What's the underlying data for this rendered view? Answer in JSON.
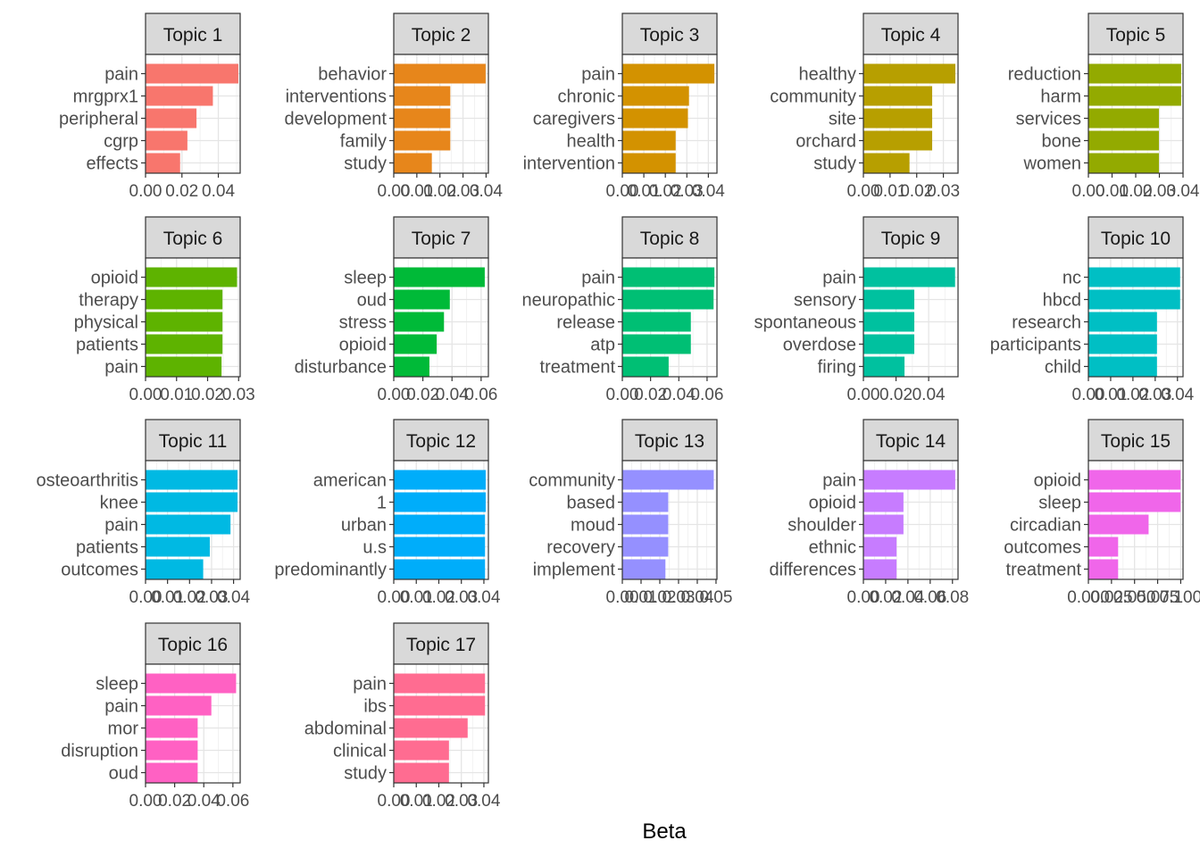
{
  "chart_data": {
    "type": "bar",
    "orientation": "horizontal",
    "layout": "facet-grid",
    "xlabel": "Beta",
    "grid": true,
    "panels": [
      {
        "title": "Topic 1",
        "color": "#F8766D",
        "categories": [
          "pain",
          "mrgprx1",
          "peripheral",
          "cgrp",
          "effects"
        ],
        "values": [
          0.051,
          0.037,
          0.028,
          0.023,
          0.019
        ],
        "xlim": [
          0,
          0.052
        ],
        "xticks": [
          0,
          0.02,
          0.04
        ],
        "xtick_labels": [
          "0.00",
          "0.02",
          "0.04"
        ]
      },
      {
        "title": "Topic 2",
        "color": "#E7861B",
        "categories": [
          "behavior",
          "interventions",
          "development",
          "family",
          "study"
        ],
        "values": [
          0.0398,
          0.0245,
          0.0245,
          0.0245,
          0.0165
        ],
        "xlim": [
          0,
          0.041
        ],
        "xticks": [
          0,
          0.01,
          0.02,
          0.03,
          0.04
        ],
        "xtick_labels": [
          "0.00",
          "0.01",
          "0.02",
          "0.03",
          "0.04"
        ]
      },
      {
        "title": "Topic 3",
        "color": "#D39200",
        "categories": [
          "pain",
          "chronic",
          "caregivers",
          "health",
          "intervention"
        ],
        "values": [
          0.0428,
          0.031,
          0.0305,
          0.0248,
          0.0248
        ],
        "xlim": [
          0,
          0.044
        ],
        "xticks": [
          0,
          0.01,
          0.02,
          0.03,
          0.04
        ],
        "xtick_labels": [
          "0.00",
          "0.01",
          "0.02",
          "0.03",
          "0.04"
        ]
      },
      {
        "title": "Topic 4",
        "color": "#B79F00",
        "categories": [
          "healthy",
          "community",
          "site",
          "orchard",
          "study"
        ],
        "values": [
          0.0345,
          0.0258,
          0.0258,
          0.0258,
          0.0173
        ],
        "xlim": [
          0,
          0.0355
        ],
        "xticks": [
          0,
          0.01,
          0.02,
          0.03
        ],
        "xtick_labels": [
          "0.00",
          "0.01",
          "0.02",
          "0.03"
        ]
      },
      {
        "title": "Topic 5",
        "color": "#93AA00",
        "categories": [
          "reduction",
          "harm",
          "services",
          "bone",
          "women"
        ],
        "values": [
          0.0392,
          0.0392,
          0.0298,
          0.0298,
          0.0298
        ],
        "xlim": [
          0,
          0.04
        ],
        "xticks": [
          0,
          0.01,
          0.02,
          0.03,
          0.04
        ],
        "xtick_labels": [
          "0.00",
          "0.01",
          "0.02",
          "0.03",
          "0.04"
        ]
      },
      {
        "title": "Topic 6",
        "color": "#5EB300",
        "categories": [
          "opioid",
          "therapy",
          "physical",
          "patients",
          "pain"
        ],
        "values": [
          0.0295,
          0.0248,
          0.0248,
          0.0248,
          0.0245
        ],
        "xlim": [
          0,
          0.0305
        ],
        "xticks": [
          0,
          0.01,
          0.02,
          0.03
        ],
        "xtick_labels": [
          "0.00",
          "0.01",
          "0.02",
          "0.03"
        ]
      },
      {
        "title": "Topic 7",
        "color": "#00BA38",
        "categories": [
          "sleep",
          "oud",
          "stress",
          "opioid",
          "disturbance"
        ],
        "values": [
          0.0625,
          0.0385,
          0.0345,
          0.0295,
          0.0245
        ],
        "xlim": [
          0,
          0.065
        ],
        "xticks": [
          0,
          0.02,
          0.04,
          0.06
        ],
        "xtick_labels": [
          "0.00",
          "0.02",
          "0.04",
          "0.06"
        ]
      },
      {
        "title": "Topic 8",
        "color": "#00BF74",
        "categories": [
          "pain",
          "neuropathic",
          "release",
          "atp",
          "treatment"
        ],
        "values": [
          0.0652,
          0.0646,
          0.0485,
          0.0485,
          0.0328
        ],
        "xlim": [
          0,
          0.067
        ],
        "xticks": [
          0,
          0.02,
          0.04,
          0.06
        ],
        "xtick_labels": [
          "0.00",
          "0.02",
          "0.04",
          "0.06"
        ]
      },
      {
        "title": "Topic 9",
        "color": "#00C19F",
        "categories": [
          "pain",
          "sensory",
          "spontaneous",
          "overdose",
          "firing"
        ],
        "values": [
          0.0562,
          0.0312,
          0.0312,
          0.0312,
          0.0252
        ],
        "xlim": [
          0,
          0.058
        ],
        "xticks": [
          0,
          0.02,
          0.04
        ],
        "xtick_labels": [
          "0.00",
          "0.02",
          "0.04"
        ]
      },
      {
        "title": "Topic 10",
        "color": "#00BFC4",
        "categories": [
          "nc",
          "hbcd",
          "research",
          "participants",
          "child"
        ],
        "values": [
          0.0412,
          0.0412,
          0.0308,
          0.0308,
          0.0308
        ],
        "xlim": [
          0,
          0.0425
        ],
        "xticks": [
          0,
          0.01,
          0.02,
          0.03,
          0.04
        ],
        "xtick_labels": [
          "0.00",
          "0.01",
          "0.02",
          "0.03",
          "0.04"
        ]
      },
      {
        "title": "Topic 11",
        "color": "#00B9E3",
        "categories": [
          "osteoarthritis",
          "knee",
          "pain",
          "patients",
          "outcomes"
        ],
        "values": [
          0.0418,
          0.0418,
          0.0386,
          0.0292,
          0.0262
        ],
        "xlim": [
          0,
          0.043
        ],
        "xticks": [
          0,
          0.01,
          0.02,
          0.03,
          0.04
        ],
        "xtick_labels": [
          "0.00",
          "0.01",
          "0.02",
          "0.03",
          "0.04"
        ]
      },
      {
        "title": "Topic 12",
        "color": "#00ADFA",
        "categories": [
          "american",
          "1",
          "urban",
          "u.s",
          "predominantly"
        ],
        "values": [
          0.0408,
          0.0408,
          0.0405,
          0.0405,
          0.0405
        ],
        "xlim": [
          0,
          0.042
        ],
        "xticks": [
          0,
          0.01,
          0.02,
          0.03,
          0.04
        ],
        "xtick_labels": [
          "0.00",
          "0.01",
          "0.02",
          "0.03",
          "0.04"
        ]
      },
      {
        "title": "Topic 13",
        "color": "#9590FF",
        "categories": [
          "community",
          "based",
          "moud",
          "recovery",
          "implement"
        ],
        "values": [
          0.0488,
          0.0245,
          0.0245,
          0.0245,
          0.023
        ],
        "xlim": [
          0,
          0.0505
        ],
        "xticks": [
          0,
          0.01,
          0.02,
          0.03,
          0.04,
          0.05
        ],
        "xtick_labels": [
          "0.00",
          "0.01",
          "0.02",
          "0.03",
          "0.04",
          "0.05"
        ]
      },
      {
        "title": "Topic 14",
        "color": "#C77CFF",
        "categories": [
          "pain",
          "opioid",
          "shoulder",
          "ethnic",
          "differences"
        ],
        "values": [
          0.0825,
          0.036,
          0.036,
          0.0298,
          0.0298
        ],
        "xlim": [
          0,
          0.085
        ],
        "xticks": [
          0,
          0.02,
          0.04,
          0.06,
          0.08
        ],
        "xtick_labels": [
          "0.00",
          "0.02",
          "0.04",
          "0.06",
          "0.08"
        ]
      },
      {
        "title": "Topic 15",
        "color": "#F066EA",
        "categories": [
          "opioid",
          "sleep",
          "circadian",
          "outcomes",
          "treatment"
        ],
        "values": [
          0.0998,
          0.0998,
          0.0652,
          0.0322,
          0.0322
        ],
        "xlim": [
          0,
          0.1025
        ],
        "xticks": [
          0,
          0.025,
          0.05,
          0.075,
          0.1
        ],
        "xtick_labels": [
          "0.000",
          "0.025",
          "0.050",
          "0.075",
          "0.100"
        ]
      },
      {
        "title": "Topic 16",
        "color": "#FF61C3",
        "categories": [
          "sleep",
          "pain",
          "mor",
          "disruption",
          "oud"
        ],
        "values": [
          0.0622,
          0.0452,
          0.0358,
          0.0358,
          0.0358
        ],
        "xlim": [
          0,
          0.065
        ],
        "xticks": [
          0,
          0.02,
          0.04,
          0.06
        ],
        "xtick_labels": [
          "0.00",
          "0.02",
          "0.04",
          "0.06"
        ]
      },
      {
        "title": "Topic 17",
        "color": "#FF6C91",
        "categories": [
          "pain",
          "ibs",
          "abdominal",
          "clinical",
          "study"
        ],
        "values": [
          0.0405,
          0.0405,
          0.0328,
          0.0245,
          0.0245
        ],
        "xlim": [
          0,
          0.042
        ],
        "xticks": [
          0,
          0.01,
          0.02,
          0.03,
          0.04
        ],
        "xtick_labels": [
          "0.00",
          "0.01",
          "0.02",
          "0.03",
          "0.04"
        ]
      }
    ]
  }
}
